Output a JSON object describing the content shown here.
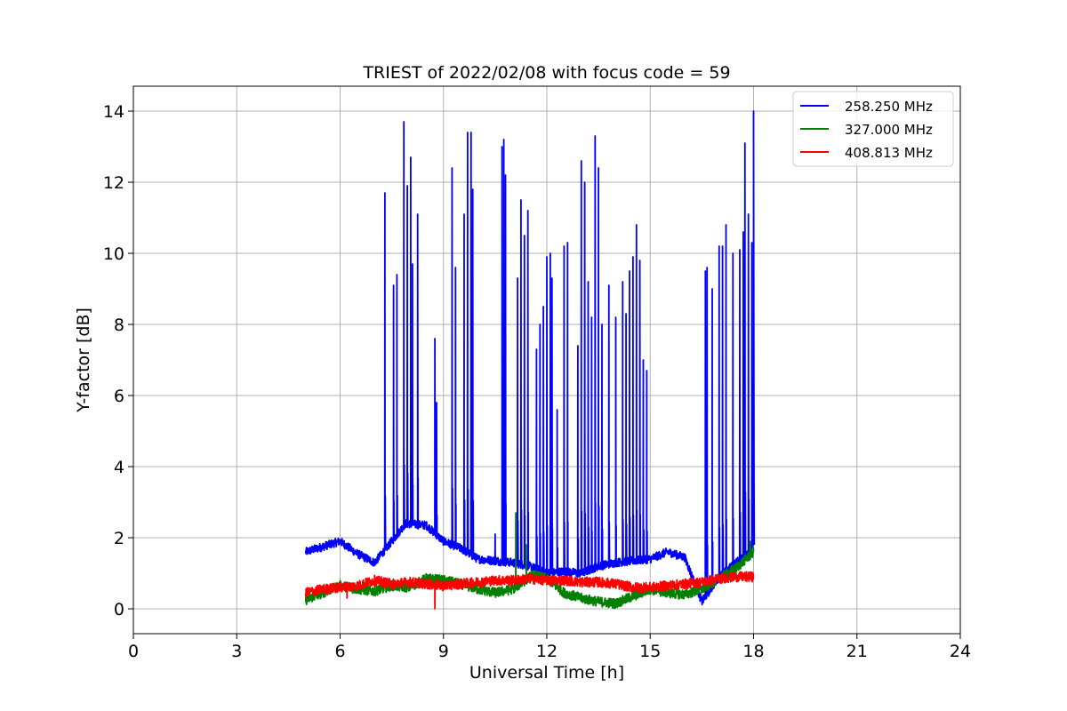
{
  "chart_data": {
    "type": "line",
    "title": "TRIEST of 2022/02/08 with focus code = 59",
    "xlabel": "Universal Time [h]",
    "ylabel": "Y-factor [dB]",
    "xlim": [
      0,
      24
    ],
    "ylim": [
      -0.7,
      14.7
    ],
    "x_ticks": [
      0,
      3,
      6,
      9,
      12,
      15,
      18,
      21,
      24
    ],
    "y_ticks": [
      0,
      2,
      4,
      6,
      8,
      10,
      12,
      14
    ],
    "grid": true,
    "legend_position": "upper-right",
    "series": [
      {
        "name": "258.250 MHz",
        "color": "#0000ff",
        "baseline": [
          [
            5.0,
            1.6
          ],
          [
            5.5,
            1.75
          ],
          [
            6.0,
            1.9
          ],
          [
            6.5,
            1.55
          ],
          [
            7.0,
            1.3
          ],
          [
            7.5,
            1.9
          ],
          [
            7.9,
            2.4
          ],
          [
            8.5,
            2.35
          ],
          [
            9.0,
            1.9
          ],
          [
            9.5,
            1.7
          ],
          [
            10.0,
            1.4
          ],
          [
            10.5,
            1.35
          ],
          [
            11.0,
            1.3
          ],
          [
            11.5,
            1.2
          ],
          [
            12.0,
            1.0
          ],
          [
            12.5,
            1.05
          ],
          [
            13.0,
            1.0
          ],
          [
            13.5,
            1.2
          ],
          [
            14.0,
            1.3
          ],
          [
            14.5,
            1.35
          ],
          [
            15.0,
            1.4
          ],
          [
            15.5,
            1.6
          ],
          [
            16.0,
            1.45
          ],
          [
            16.5,
            0.2
          ],
          [
            17.0,
            0.9
          ],
          [
            17.5,
            1.3
          ],
          [
            18.0,
            1.8
          ]
        ],
        "spikes": [
          [
            7.3,
            11.7
          ],
          [
            7.55,
            9.1
          ],
          [
            7.65,
            9.4
          ],
          [
            7.85,
            13.7
          ],
          [
            7.95,
            11.9
          ],
          [
            8.05,
            12.7
          ],
          [
            8.1,
            9.7
          ],
          [
            8.25,
            11.1
          ],
          [
            8.75,
            7.6
          ],
          [
            8.8,
            5.8
          ],
          [
            9.25,
            12.4
          ],
          [
            9.35,
            9.6
          ],
          [
            9.6,
            11.1
          ],
          [
            9.7,
            13.4
          ],
          [
            9.8,
            13.4
          ],
          [
            9.85,
            11.8
          ],
          [
            10.5,
            2.1
          ],
          [
            10.7,
            13.0
          ],
          [
            10.75,
            13.2
          ],
          [
            10.8,
            12.2
          ],
          [
            11.15,
            9.3
          ],
          [
            11.25,
            11.5
          ],
          [
            11.35,
            10.5
          ],
          [
            11.45,
            11.2
          ],
          [
            11.7,
            7.3
          ],
          [
            11.8,
            8.0
          ],
          [
            11.9,
            8.5
          ],
          [
            12.0,
            9.9
          ],
          [
            12.1,
            10.0
          ],
          [
            12.15,
            9.3
          ],
          [
            12.3,
            5.6
          ],
          [
            12.5,
            10.2
          ],
          [
            12.6,
            10.3
          ],
          [
            12.9,
            7.4
          ],
          [
            13.0,
            12.6
          ],
          [
            13.1,
            12.0
          ],
          [
            13.2,
            9.2
          ],
          [
            13.3,
            8.2
          ],
          [
            13.4,
            13.3
          ],
          [
            13.5,
            12.4
          ],
          [
            13.6,
            8.0
          ],
          [
            13.8,
            9.1
          ],
          [
            14.0,
            8.2
          ],
          [
            14.2,
            9.2
          ],
          [
            14.3,
            8.3
          ],
          [
            14.4,
            9.5
          ],
          [
            14.5,
            9.9
          ],
          [
            14.6,
            10.8
          ],
          [
            14.7,
            9.8
          ],
          [
            14.8,
            7.0
          ],
          [
            14.9,
            6.7
          ],
          [
            16.6,
            9.5
          ],
          [
            16.65,
            9.6
          ],
          [
            16.8,
            9.0
          ],
          [
            17.0,
            10.2
          ],
          [
            17.1,
            10.2
          ],
          [
            17.2,
            10.8
          ],
          [
            17.4,
            10.0
          ],
          [
            17.6,
            10.1
          ],
          [
            17.7,
            10.6
          ],
          [
            17.75,
            13.1
          ],
          [
            17.85,
            11.1
          ],
          [
            17.95,
            10.3
          ],
          [
            18.0,
            14.0
          ]
        ]
      },
      {
        "name": "327.000 MHz",
        "color": "#008000",
        "baseline": [
          [
            5.0,
            0.25
          ],
          [
            5.5,
            0.45
          ],
          [
            6.0,
            0.65
          ],
          [
            6.5,
            0.55
          ],
          [
            7.0,
            0.5
          ],
          [
            7.5,
            0.65
          ],
          [
            8.0,
            0.6
          ],
          [
            8.5,
            0.85
          ],
          [
            9.0,
            0.8
          ],
          [
            9.5,
            0.7
          ],
          [
            10.0,
            0.55
          ],
          [
            10.5,
            0.45
          ],
          [
            11.0,
            0.55
          ],
          [
            11.3,
            0.75
          ],
          [
            11.6,
            0.95
          ],
          [
            12.0,
            0.85
          ],
          [
            12.5,
            0.45
          ],
          [
            13.0,
            0.3
          ],
          [
            13.5,
            0.2
          ],
          [
            14.0,
            0.15
          ],
          [
            14.5,
            0.35
          ],
          [
            15.0,
            0.55
          ],
          [
            15.5,
            0.45
          ],
          [
            16.0,
            0.4
          ],
          [
            16.5,
            0.55
          ],
          [
            17.0,
            0.85
          ],
          [
            17.5,
            1.15
          ],
          [
            18.0,
            1.6
          ]
        ],
        "spikes": [
          [
            11.1,
            2.7
          ],
          [
            11.4,
            1.8
          ],
          [
            17.9,
            1.9
          ]
        ]
      },
      {
        "name": "408.813 MHz",
        "color": "#ff0000",
        "baseline": [
          [
            5.0,
            0.45
          ],
          [
            5.5,
            0.55
          ],
          [
            6.0,
            0.6
          ],
          [
            6.5,
            0.65
          ],
          [
            7.0,
            0.8
          ],
          [
            7.5,
            0.7
          ],
          [
            8.0,
            0.75
          ],
          [
            8.5,
            0.7
          ],
          [
            9.0,
            0.65
          ],
          [
            9.5,
            0.7
          ],
          [
            10.0,
            0.75
          ],
          [
            10.5,
            0.8
          ],
          [
            11.0,
            0.8
          ],
          [
            11.5,
            0.85
          ],
          [
            12.0,
            0.8
          ],
          [
            12.5,
            0.8
          ],
          [
            13.0,
            0.75
          ],
          [
            13.5,
            0.75
          ],
          [
            14.0,
            0.7
          ],
          [
            14.5,
            0.6
          ],
          [
            15.0,
            0.6
          ],
          [
            15.5,
            0.65
          ],
          [
            16.0,
            0.7
          ],
          [
            16.5,
            0.75
          ],
          [
            17.0,
            0.85
          ],
          [
            17.5,
            0.9
          ],
          [
            18.0,
            0.9
          ]
        ],
        "spikes": [
          [
            8.75,
            0.0
          ],
          [
            6.2,
            0.3
          ]
        ]
      }
    ]
  }
}
